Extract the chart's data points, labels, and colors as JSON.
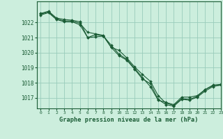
{
  "title": "Graphe pression niveau de la mer (hPa)",
  "background_color": "#cceedd",
  "grid_color": "#99ccbb",
  "line_color": "#1a5c35",
  "xlim": [
    -0.5,
    23
  ],
  "ylim": [
    1016.3,
    1023.4
  ],
  "yticks": [
    1017,
    1018,
    1019,
    1020,
    1021,
    1022
  ],
  "xticks": [
    0,
    1,
    2,
    3,
    4,
    5,
    6,
    7,
    8,
    9,
    10,
    11,
    12,
    13,
    14,
    15,
    16,
    17,
    18,
    19,
    20,
    21,
    22,
    23
  ],
  "series": [
    [
      1022.6,
      1022.75,
      1022.3,
      1022.2,
      1022.15,
      1022.05,
      1021.0,
      1021.2,
      1021.1,
      1020.5,
      1019.9,
      1019.55,
      1018.95,
      1018.35,
      1017.75,
      1016.85,
      1016.7,
      1016.55,
      1017.05,
      1017.05,
      1017.15,
      1017.55,
      1017.8,
      1017.85
    ],
    [
      1022.55,
      1022.7,
      1022.25,
      1022.1,
      1022.1,
      1021.95,
      1021.35,
      1021.25,
      1021.15,
      1020.35,
      1020.15,
      1019.65,
      1019.05,
      1018.55,
      1018.1,
      1017.15,
      1016.65,
      1016.5,
      1016.95,
      1016.9,
      1017.1,
      1017.55,
      1017.85,
      1017.9
    ],
    [
      1022.5,
      1022.65,
      1022.2,
      1022.05,
      1022.05,
      1021.85,
      1021.0,
      1021.05,
      1021.1,
      1020.35,
      1019.8,
      1019.5,
      1018.9,
      1018.25,
      1017.95,
      1016.9,
      1016.55,
      1016.45,
      1016.9,
      1016.85,
      1017.05,
      1017.45,
      1017.75,
      1017.85
    ]
  ]
}
